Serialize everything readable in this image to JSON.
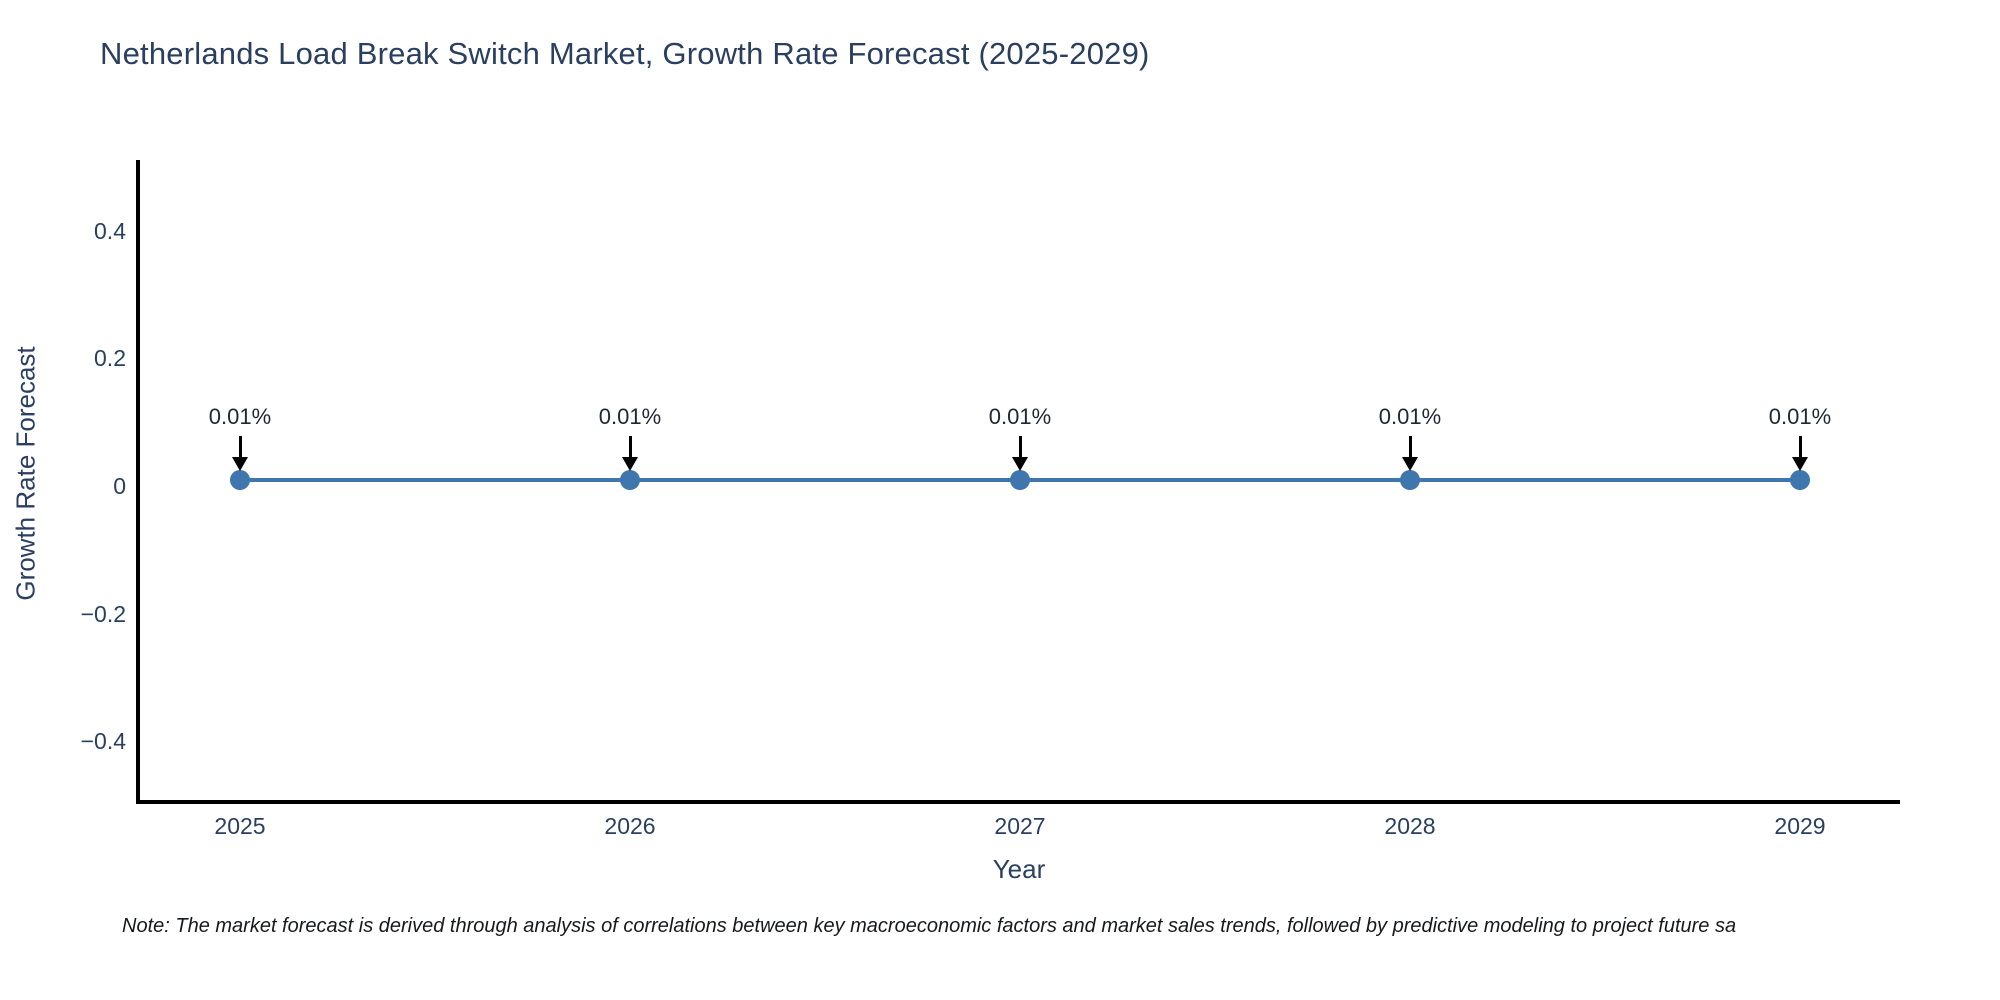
{
  "title": "Netherlands Load Break Switch Market, Growth Rate Forecast (2025-2029)",
  "note": "Note: The market forecast is derived through analysis of correlations between key macroeconomic factors and market sales trends, followed by predictive modeling to project future sa",
  "chart_data": {
    "type": "line",
    "title": "Netherlands Load Break Switch Market, Growth Rate Forecast (2025-2029)",
    "xlabel": "Year",
    "ylabel": "Growth Rate Forecast",
    "x": [
      2025,
      2026,
      2027,
      2028,
      2029
    ],
    "values": [
      0.01,
      0.01,
      0.01,
      0.01,
      0.01
    ],
    "unit": "%",
    "point_labels": [
      "0.01%",
      "0.01%",
      "0.01%",
      "0.01%",
      "0.01%"
    ],
    "yticks": [
      0.4,
      0.2,
      0,
      -0.2,
      -0.4
    ],
    "ytick_labels": [
      "0.4",
      "0.2",
      "0",
      "−0.2",
      "−0.4"
    ],
    "ylim": [
      -0.5,
      0.51
    ],
    "grid": false,
    "legend": "none",
    "annotation_style": "down-arrow",
    "colors": {
      "line": "#3E76AD",
      "marker": "#3E76AD",
      "arrow": "#000000",
      "axis_text": "#2a3f5f",
      "spine": "#000000",
      "background": "#ffffff"
    }
  }
}
